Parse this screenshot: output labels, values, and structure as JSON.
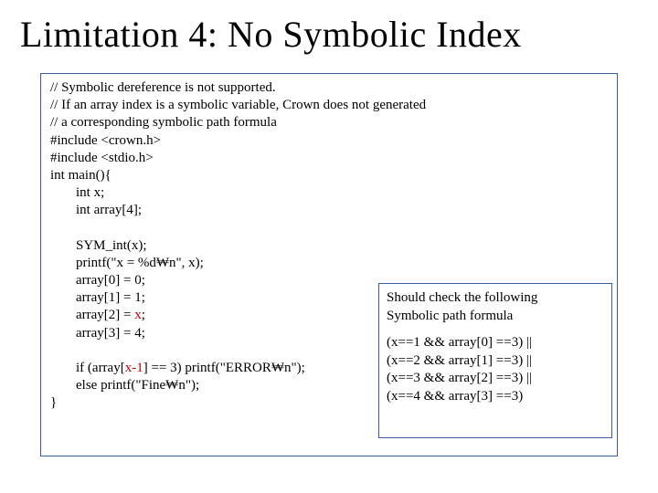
{
  "title": "Limitation 4: No Symbolic Index",
  "code": {
    "c1": "// Symbolic dereference is not supported.",
    "c2": "// If an array index is a symbolic variable, Crown does not generated",
    "c3": "// a corresponding symbolic path formula",
    "inc1": "#include <crown.h>",
    "inc2": "#include <stdio.h>",
    "mainOpen": "int main(){",
    "declX": "int x;",
    "declArr": "int array[4];",
    "symInt": "SYM_int(x);",
    "printf1": "printf(\"x = %d₩n\", x);",
    "a0": "array[0] = 0;",
    "a1": "array[1] = 1;",
    "a2_pre": "array[2] = ",
    "a2_x": "x",
    "a2_post": ";",
    "a3": "array[3] = 4;",
    "if_pre": "if (array[",
    "if_idx": "x-1",
    "if_post": "] == 3)   printf(\"ERROR₩n\");",
    "else": "else            printf(\"Fine₩n\");",
    "closeBrace": "}"
  },
  "anno": {
    "h1": "Should check the following",
    "h2": "Symbolic path formula",
    "f1": "(x==1 && array[0] ==3) ||",
    "f2": "(x==2 && array[1] ==3) ||",
    "f3": "(x==3 && array[2] ==3) ||",
    "f4": "(x==4 && array[3] ==3)"
  },
  "colors": {
    "border": "#3b5ba5",
    "highlight": "#c00000",
    "text": "#000000",
    "background": "#ffffff"
  }
}
